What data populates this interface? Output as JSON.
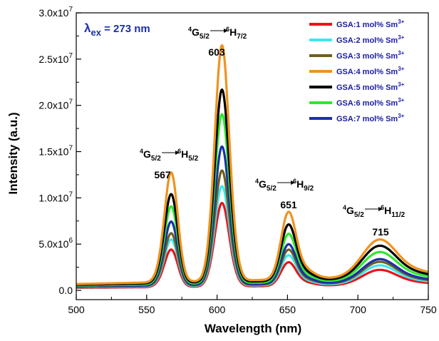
{
  "chart_data": {
    "type": "line",
    "xlabel": "Wavelength (nm)",
    "ylabel": "Intensity (a.u.)",
    "xlim": [
      500,
      750
    ],
    "ylim": [
      -1000000,
      30000000
    ],
    "x_ticks": [
      500,
      550,
      600,
      650,
      700,
      750
    ],
    "y_ticks": [
      {
        "value": 0,
        "label": "0.0"
      },
      {
        "value": 5000000,
        "label": "5.0x10",
        "exp": "6"
      },
      {
        "value": 10000000,
        "label": "1.0x10",
        "exp": "7"
      },
      {
        "value": 15000000,
        "label": "1.5x10",
        "exp": "7"
      },
      {
        "value": 20000000,
        "label": "2.0x10",
        "exp": "7"
      },
      {
        "value": 25000000,
        "label": "2.5x10",
        "exp": "7"
      },
      {
        "value": 30000000,
        "label": "3.0x10",
        "exp": "7"
      }
    ],
    "grid": false,
    "legend_position": "top-right",
    "excitation": {
      "symbol": "λ",
      "sub": "ex",
      "text": " = 273 nm"
    },
    "series": [
      {
        "name": "GSA:1 mol% Sm",
        "sup": "3+",
        "color": "#e8141c",
        "peaks": {
          "567": 4000000,
          "603": 8900000,
          "651": 2950000,
          "715": 2300000
        }
      },
      {
        "name": "GSA:2 mol% Sm",
        "sup": "3+",
        "color": "#3ee8f0",
        "peaks": {
          "567": 5000000,
          "603": 10600000,
          "651": 3700000,
          "715": 2800000
        }
      },
      {
        "name": "GSA:3 mol% Sm",
        "sup": "3+",
        "color": "#6e5f1c",
        "peaks": {
          "567": 5600000,
          "603": 12200000,
          "651": 4300000,
          "715": 3200000
        }
      },
      {
        "name": "GSA:4 mol% Sm",
        "sup": "3+",
        "color": "#f0921e",
        "peaks": {
          "567": 11700000,
          "603": 25100000,
          "651": 8400000,
          "715": 5700000
        }
      },
      {
        "name": "GSA:5 mol% Sm",
        "sup": "3+",
        "color": "#000000",
        "peaks": {
          "567": 9500000,
          "603": 20500000,
          "651": 7000000,
          "715": 5000000
        }
      },
      {
        "name": "GSA:6 mol% Sm",
        "sup": "3+",
        "color": "#2ee82e",
        "peaks": {
          "567": 8300000,
          "603": 18000000,
          "651": 6000000,
          "715": 4300000
        }
      },
      {
        "name": "GSA:7 mol% Sm",
        "sup": "3+",
        "color": "#1a2faa",
        "peaks": {
          "567": 6800000,
          "603": 14700000,
          "651": 4900000,
          "715": 3500000
        }
      }
    ],
    "annotations": [
      {
        "wavelength": "567",
        "from_term": "4",
        "from_L": "G",
        "from_J": "5/2",
        "to_term": "6",
        "to_L": "H",
        "to_J": "5/2"
      },
      {
        "wavelength": "603",
        "from_term": "4",
        "from_L": "G",
        "from_J": "5/2",
        "to_term": "6",
        "to_L": "H",
        "to_J": "7/2"
      },
      {
        "wavelength": "651",
        "from_term": "4",
        "from_L": "G",
        "from_J": "5/2",
        "to_term": "6",
        "to_L": "H",
        "to_J": "9/2"
      },
      {
        "wavelength": "715",
        "from_term": "4",
        "from_L": "G",
        "from_J": "5/2",
        "to_term": "6",
        "to_L": "H",
        "to_J": "11/2"
      }
    ]
  }
}
